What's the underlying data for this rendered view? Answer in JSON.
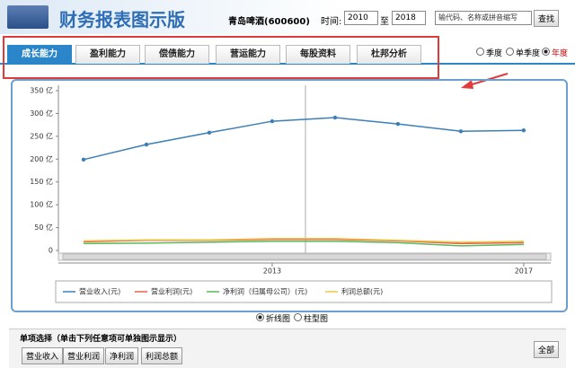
{
  "header": {
    "title": "财务报表图示版",
    "stock": "青岛啤酒(600600)",
    "time_label": "时间:",
    "from": "2010",
    "to_label": "至",
    "to": "2018",
    "search_placeholder": "输代码、名称或拼音缩写",
    "search_button": "查找"
  },
  "tabs": [
    "成长能力",
    "盈利能力",
    "偿债能力",
    "营运能力",
    "每股资料",
    "杜邦分析"
  ],
  "period_options": [
    "季度",
    "单季度",
    "年度"
  ],
  "chart_options": [
    "折线图",
    "柱型图"
  ],
  "single_select": {
    "title": "单项选择（单击下列任意项可单独图示显示）",
    "buttons": [
      "营业收入",
      "营业利润",
      "净利润",
      "利润总额"
    ],
    "all": "全部"
  },
  "chart_data": {
    "type": "line",
    "x": [
      2010,
      2011,
      2012,
      2013,
      2014,
      2015,
      2016,
      2017
    ],
    "xlim": [
      2009.6,
      2017.43
    ],
    "xticks": [
      2013,
      2017
    ],
    "ylim": [
      0,
      350
    ],
    "yticks": [
      {
        "value": 0,
        "label": "0"
      },
      {
        "value": 50,
        "label": "50 亿"
      },
      {
        "value": 100,
        "label": "100 亿"
      },
      {
        "value": 150,
        "label": "150 亿"
      },
      {
        "value": 200,
        "label": "200 亿"
      },
      {
        "value": 250,
        "label": "250 亿"
      },
      {
        "value": 300,
        "label": "300 亿"
      },
      {
        "value": 350,
        "label": "350 亿"
      }
    ],
    "grid": false,
    "series": [
      {
        "name": "营业收入(元)",
        "color": "#3a7fb8",
        "values": [
          199,
          232,
          258,
          283,
          291,
          277,
          261,
          263
        ],
        "markers": true
      },
      {
        "name": "营业利润(元)",
        "color": "#e8604a",
        "values": [
          19,
          22,
          22,
          24,
          24,
          21,
          15,
          17
        ],
        "markers": false
      },
      {
        "name": "净利润（归属母公司）(元)",
        "color": "#5cb85c",
        "values": [
          15,
          16,
          18,
          20,
          20,
          17,
          10,
          13
        ],
        "markers": false
      },
      {
        "name": "利润总额(元)",
        "color": "#e8c547",
        "values": [
          21,
          23,
          23,
          26,
          26,
          22,
          18,
          20
        ],
        "markers": false
      }
    ]
  }
}
